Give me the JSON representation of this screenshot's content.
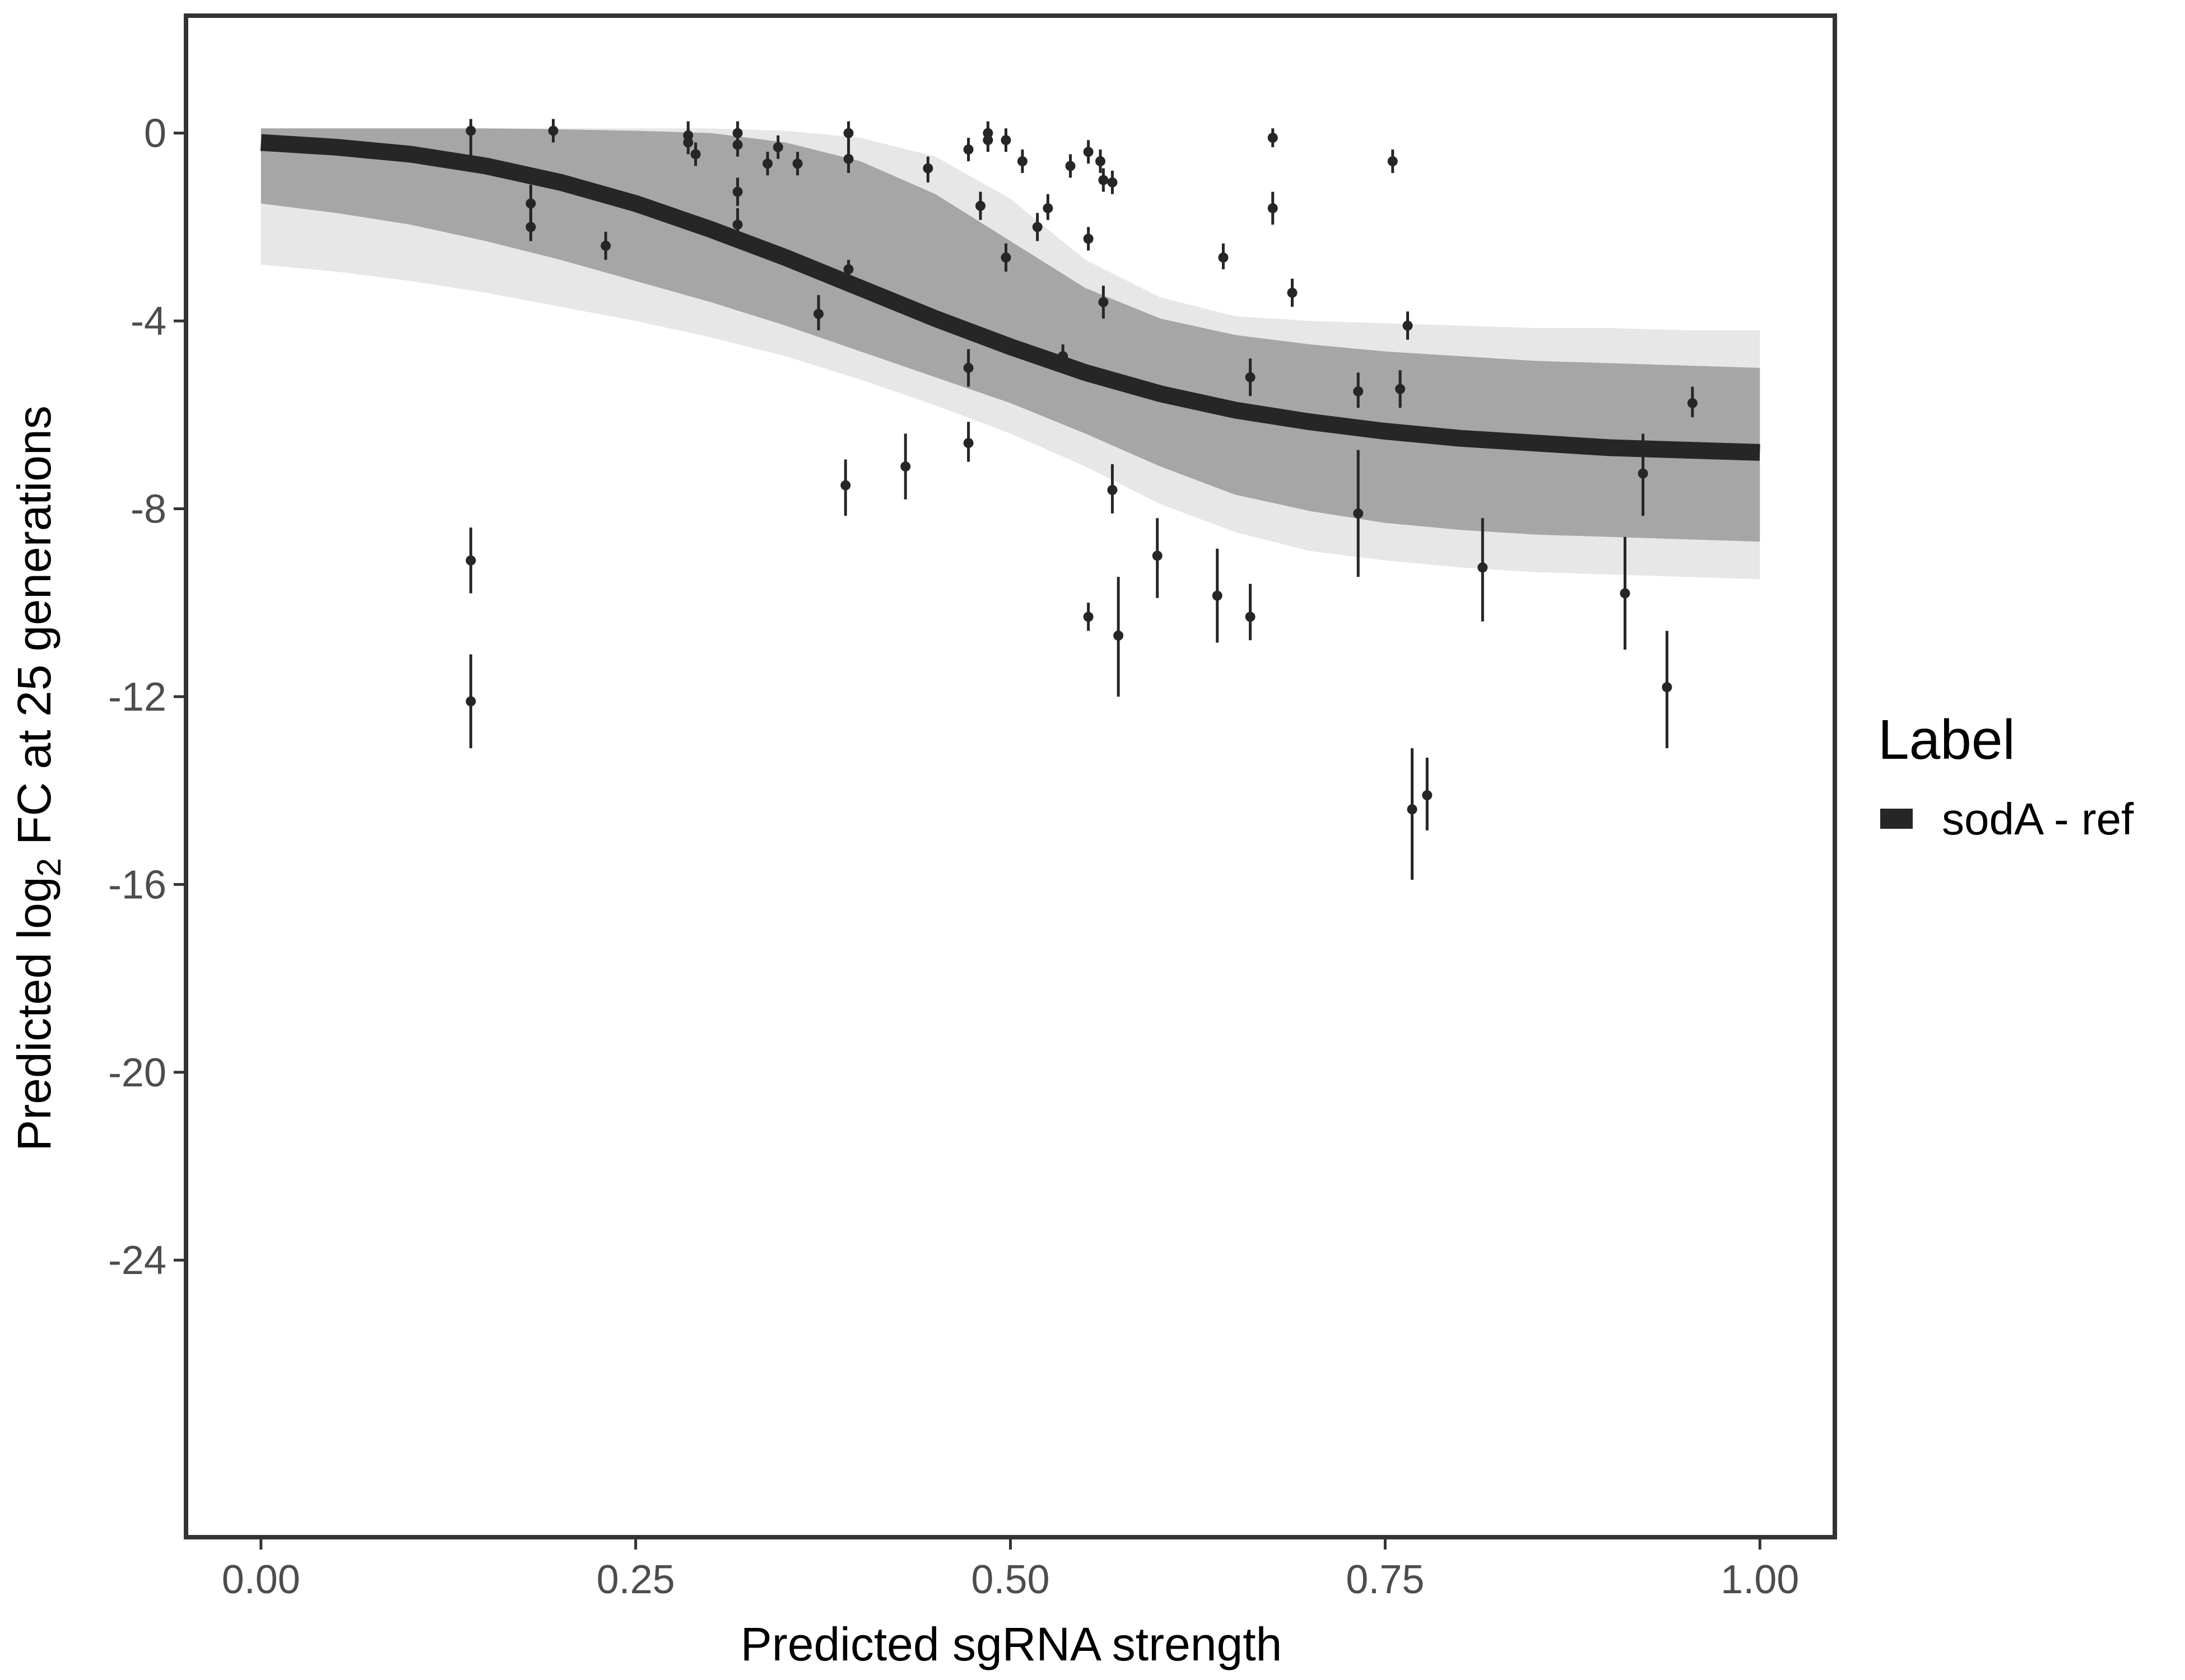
{
  "chart_data": {
    "type": "line",
    "xlabel": "Predicted sgRNA strength",
    "ylabel": {
      "prefix": "Predicted  log",
      "subscript": "2",
      "suffix": " FC at 25 generations"
    },
    "xlim": [
      -0.05,
      1.05
    ],
    "ylim": [
      -29.9,
      2.5
    ],
    "x_ticks": [
      0.0,
      0.25,
      0.5,
      0.75,
      1.0
    ],
    "x_tick_labels": [
      "0.00",
      "0.25",
      "0.50",
      "0.75",
      "1.00"
    ],
    "y_ticks": [
      0,
      -4,
      -8,
      -12,
      -16,
      -20,
      -24
    ],
    "y_tick_labels": [
      "0",
      "-4",
      "-8",
      "-12",
      "-16",
      "-20",
      "-24"
    ],
    "grid": false,
    "legend": {
      "title": "Label",
      "position": "right",
      "entries": [
        {
          "label": "sodA - ref",
          "color": "#262626"
        }
      ]
    },
    "fit_curve": {
      "name": "sodA - ref",
      "color": "#262626",
      "x": [
        0.0,
        0.05,
        0.1,
        0.15,
        0.2,
        0.25,
        0.3,
        0.35,
        0.4,
        0.45,
        0.5,
        0.55,
        0.6,
        0.65,
        0.7,
        0.75,
        0.8,
        0.85,
        0.9,
        0.95,
        1.0
      ],
      "y": [
        -0.2,
        -0.3,
        -0.45,
        -0.7,
        -1.05,
        -1.5,
        -2.05,
        -2.65,
        -3.3,
        -3.95,
        -4.55,
        -5.1,
        -5.55,
        -5.9,
        -6.15,
        -6.35,
        -6.5,
        -6.6,
        -6.7,
        -6.75,
        -6.8
      ]
    },
    "uncertainty_band": {
      "color": "#a6a6a6",
      "x": [
        0.0,
        0.05,
        0.1,
        0.15,
        0.2,
        0.25,
        0.3,
        0.35,
        0.4,
        0.45,
        0.5,
        0.55,
        0.6,
        0.65,
        0.7,
        0.75,
        0.8,
        0.85,
        0.9,
        0.95,
        1.0
      ],
      "upper": [
        0.1,
        0.1,
        0.1,
        0.1,
        0.08,
        0.05,
        0.0,
        -0.2,
        -0.6,
        -1.3,
        -2.3,
        -3.3,
        -3.95,
        -4.3,
        -4.5,
        -4.65,
        -4.75,
        -4.85,
        -4.9,
        -4.95,
        -5.0
      ],
      "lower": [
        -1.5,
        -1.7,
        -1.95,
        -2.3,
        -2.7,
        -3.15,
        -3.6,
        -4.1,
        -4.65,
        -5.2,
        -5.75,
        -6.4,
        -7.1,
        -7.7,
        -8.05,
        -8.3,
        -8.45,
        -8.55,
        -8.6,
        -8.65,
        -8.7
      ],
      "outer_upper": [
        0.1,
        0.1,
        0.1,
        0.1,
        0.1,
        0.1,
        0.1,
        0.05,
        -0.1,
        -0.5,
        -1.4,
        -2.7,
        -3.5,
        -3.9,
        -4.0,
        -4.05,
        -4.1,
        -4.15,
        -4.15,
        -4.2,
        -4.2
      ],
      "outer_lower": [
        -2.8,
        -2.95,
        -3.15,
        -3.4,
        -3.7,
        -4.0,
        -4.35,
        -4.75,
        -5.25,
        -5.8,
        -6.4,
        -7.1,
        -7.9,
        -8.5,
        -8.9,
        -9.1,
        -9.25,
        -9.35,
        -9.4,
        -9.45,
        -9.5
      ]
    },
    "points": [
      {
        "x": 0.14,
        "y": 0.05,
        "lo": -0.7,
        "hi": 0.3
      },
      {
        "x": 0.14,
        "y": -9.1,
        "lo": -9.8,
        "hi": -8.4
      },
      {
        "x": 0.14,
        "y": -12.1,
        "lo": -13.1,
        "hi": -11.1
      },
      {
        "x": 0.18,
        "y": -1.5,
        "lo": -1.9,
        "hi": -1.1
      },
      {
        "x": 0.18,
        "y": -2.0,
        "lo": -2.3,
        "hi": -1.6
      },
      {
        "x": 0.195,
        "y": 0.05,
        "lo": -0.2,
        "hi": 0.3
      },
      {
        "x": 0.23,
        "y": -2.4,
        "lo": -2.7,
        "hi": -2.1
      },
      {
        "x": 0.285,
        "y": -0.05,
        "lo": -0.3,
        "hi": 0.25
      },
      {
        "x": 0.285,
        "y": -0.2,
        "lo": -0.45,
        "hi": 0.1
      },
      {
        "x": 0.29,
        "y": -0.45,
        "lo": -0.7,
        "hi": -0.2
      },
      {
        "x": 0.318,
        "y": 0.0,
        "lo": -0.25,
        "hi": 0.25
      },
      {
        "x": 0.318,
        "y": -0.25,
        "lo": -0.5,
        "hi": 0.0
      },
      {
        "x": 0.318,
        "y": -1.25,
        "lo": -1.55,
        "hi": -0.95
      },
      {
        "x": 0.318,
        "y": -1.95,
        "lo": -2.3,
        "hi": -1.6
      },
      {
        "x": 0.338,
        "y": -0.65,
        "lo": -0.9,
        "hi": -0.4
      },
      {
        "x": 0.345,
        "y": -0.3,
        "lo": -0.55,
        "hi": -0.05
      },
      {
        "x": 0.358,
        "y": -0.65,
        "lo": -0.9,
        "hi": -0.4
      },
      {
        "x": 0.372,
        "y": -3.85,
        "lo": -4.2,
        "hi": -3.45
      },
      {
        "x": 0.39,
        "y": -7.5,
        "lo": -8.15,
        "hi": -6.95
      },
      {
        "x": 0.392,
        "y": 0.0,
        "lo": -0.3,
        "hi": 0.25
      },
      {
        "x": 0.392,
        "y": -0.55,
        "lo": -0.85,
        "hi": -0.25
      },
      {
        "x": 0.392,
        "y": -2.9,
        "lo": -3.1,
        "hi": -2.7
      },
      {
        "x": 0.43,
        "y": -7.1,
        "lo": -7.8,
        "hi": -6.4
      },
      {
        "x": 0.445,
        "y": -0.75,
        "lo": -1.05,
        "hi": -0.5
      },
      {
        "x": 0.472,
        "y": -0.35,
        "lo": -0.6,
        "hi": -0.1
      },
      {
        "x": 0.472,
        "y": -5.0,
        "lo": -5.4,
        "hi": -4.6
      },
      {
        "x": 0.472,
        "y": -6.6,
        "lo": -7.0,
        "hi": -6.15
      },
      {
        "x": 0.48,
        "y": -1.55,
        "lo": -1.85,
        "hi": -1.25
      },
      {
        "x": 0.485,
        "y": 0.0,
        "lo": -0.25,
        "hi": 0.25
      },
      {
        "x": 0.485,
        "y": -0.15,
        "lo": -0.4,
        "hi": 0.1
      },
      {
        "x": 0.497,
        "y": -0.15,
        "lo": -0.4,
        "hi": 0.1
      },
      {
        "x": 0.497,
        "y": -2.65,
        "lo": -2.95,
        "hi": -2.35
      },
      {
        "x": 0.508,
        "y": -0.6,
        "lo": -0.85,
        "hi": -0.35
      },
      {
        "x": 0.518,
        "y": -2.0,
        "lo": -2.3,
        "hi": -1.7
      },
      {
        "x": 0.525,
        "y": -1.6,
        "lo": -1.85,
        "hi": -1.3
      },
      {
        "x": 0.535,
        "y": -4.75,
        "lo": -5.0,
        "hi": -4.5
      },
      {
        "x": 0.54,
        "y": -0.7,
        "lo": -0.95,
        "hi": -0.45
      },
      {
        "x": 0.552,
        "y": -0.4,
        "lo": -0.65,
        "hi": -0.15
      },
      {
        "x": 0.552,
        "y": -2.25,
        "lo": -2.5,
        "hi": -2.0
      },
      {
        "x": 0.552,
        "y": -10.3,
        "lo": -10.6,
        "hi": -10.0
      },
      {
        "x": 0.56,
        "y": -0.6,
        "lo": -0.85,
        "hi": -0.35
      },
      {
        "x": 0.562,
        "y": -1.0,
        "lo": -1.25,
        "hi": -0.75
      },
      {
        "x": 0.562,
        "y": -3.6,
        "lo": -3.95,
        "hi": -3.25
      },
      {
        "x": 0.568,
        "y": -1.05,
        "lo": -1.3,
        "hi": -0.8
      },
      {
        "x": 0.568,
        "y": -7.6,
        "lo": -8.1,
        "hi": -7.05
      },
      {
        "x": 0.572,
        "y": -10.7,
        "lo": -12.0,
        "hi": -9.45
      },
      {
        "x": 0.598,
        "y": -9.0,
        "lo": -9.9,
        "hi": -8.2
      },
      {
        "x": 0.638,
        "y": -9.85,
        "lo": -10.85,
        "hi": -8.85
      },
      {
        "x": 0.642,
        "y": -2.65,
        "lo": -2.9,
        "hi": -2.35
      },
      {
        "x": 0.66,
        "y": -5.2,
        "lo": -5.6,
        "hi": -4.8
      },
      {
        "x": 0.66,
        "y": -10.3,
        "lo": -10.8,
        "hi": -9.6
      },
      {
        "x": 0.675,
        "y": -0.1,
        "lo": -0.3,
        "hi": 0.1
      },
      {
        "x": 0.675,
        "y": -1.6,
        "lo": -1.95,
        "hi": -1.25
      },
      {
        "x": 0.688,
        "y": -3.4,
        "lo": -3.7,
        "hi": -3.1
      },
      {
        "x": 0.732,
        "y": -5.5,
        "lo": -5.85,
        "hi": -5.1
      },
      {
        "x": 0.732,
        "y": -8.1,
        "lo": -9.45,
        "hi": -6.75
      },
      {
        "x": 0.755,
        "y": -0.6,
        "lo": -0.85,
        "hi": -0.35
      },
      {
        "x": 0.76,
        "y": -5.45,
        "lo": -5.85,
        "hi": -5.05
      },
      {
        "x": 0.765,
        "y": -4.1,
        "lo": -4.4,
        "hi": -3.8
      },
      {
        "x": 0.768,
        "y": -14.4,
        "lo": -15.9,
        "hi": -13.1
      },
      {
        "x": 0.778,
        "y": -14.1,
        "lo": -14.85,
        "hi": -13.3
      },
      {
        "x": 0.815,
        "y": -9.25,
        "lo": -10.4,
        "hi": -8.2
      },
      {
        "x": 0.91,
        "y": -9.8,
        "lo": -11.0,
        "hi": -8.6
      },
      {
        "x": 0.922,
        "y": -7.25,
        "lo": -8.15,
        "hi": -6.4
      },
      {
        "x": 0.938,
        "y": -11.8,
        "lo": -13.1,
        "hi": -10.6
      },
      {
        "x": 0.955,
        "y": -5.75,
        "lo": -6.05,
        "hi": -5.4
      }
    ]
  }
}
